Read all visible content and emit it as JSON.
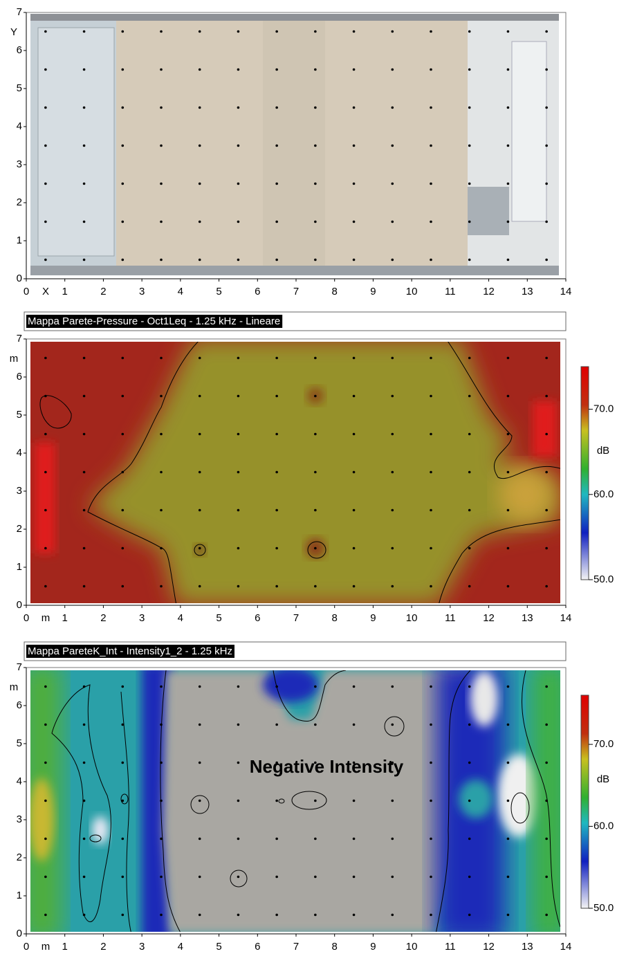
{
  "chart_data": [
    {
      "type": "photo-map",
      "xlabel": "X",
      "ylabel": "Y",
      "xlim": [
        0,
        14
      ],
      "ylim": [
        0,
        7
      ],
      "xticks": [
        0,
        1,
        2,
        3,
        4,
        5,
        6,
        7,
        8,
        9,
        10,
        11,
        12,
        13,
        14
      ],
      "yticks": [
        0,
        1,
        2,
        3,
        4,
        5,
        6,
        7
      ],
      "grid_x": [
        0.5,
        1.5,
        2.5,
        3.5,
        4.5,
        5.5,
        6.5,
        7.5,
        8.5,
        9.5,
        10.5,
        11.5,
        12.5,
        13.5
      ],
      "grid_y": [
        0.5,
        1.5,
        2.5,
        3.5,
        4.5,
        5.5,
        6.5
      ]
    },
    {
      "type": "heatmap",
      "title": "Mappa Parete-Pressure - Oct1Leq - 1.25 kHz - Lineare",
      "xlabel": "m",
      "ylabel": "m",
      "xlim": [
        0,
        14
      ],
      "ylim": [
        0,
        7
      ],
      "xticks": [
        0,
        1,
        2,
        3,
        4,
        5,
        6,
        7,
        8,
        9,
        10,
        11,
        12,
        13,
        14
      ],
      "yticks": [
        0,
        1,
        2,
        3,
        4,
        5,
        6,
        7
      ],
      "grid_x": [
        0.5,
        1.5,
        2.5,
        3.5,
        4.5,
        5.5,
        6.5,
        7.5,
        8.5,
        9.5,
        10.5,
        11.5,
        12.5,
        13.5
      ],
      "grid_y": [
        0.5,
        1.5,
        2.5,
        3.5,
        4.5,
        5.5,
        6.5
      ],
      "colorbar": {
        "label": "dB",
        "lim": [
          50,
          75
        ],
        "ticks": [
          {
            "value": 50,
            "label": "50.0"
          },
          {
            "value": 60,
            "label": "60.0"
          },
          {
            "value": 70,
            "label": "70.0"
          }
        ]
      }
    },
    {
      "type": "heatmap",
      "title": "Mappa PareteK_Int - Intensity1_2 - 1.25 kHz",
      "xlabel": "m",
      "ylabel": "m",
      "xlim": [
        0,
        14
      ],
      "ylim": [
        0,
        7
      ],
      "xticks": [
        0,
        1,
        2,
        3,
        4,
        5,
        6,
        7,
        8,
        9,
        10,
        11,
        12,
        13,
        14
      ],
      "yticks": [
        0,
        1,
        2,
        3,
        4,
        5,
        6,
        7
      ],
      "grid_x": [
        0.5,
        1.5,
        2.5,
        3.5,
        4.5,
        5.5,
        6.5,
        7.5,
        8.5,
        9.5,
        10.5,
        11.5,
        12.5,
        13.5
      ],
      "grid_y": [
        0.5,
        1.5,
        2.5,
        3.5,
        4.5,
        5.5,
        6.5
      ],
      "annotation": "Negative Intensity",
      "colorbar": {
        "label": "dB",
        "lim": [
          50,
          76
        ],
        "ticks": [
          {
            "value": 50,
            "label": "50.0"
          },
          {
            "value": 60,
            "label": "60.0"
          },
          {
            "value": 70,
            "label": "70.0"
          }
        ]
      }
    }
  ]
}
